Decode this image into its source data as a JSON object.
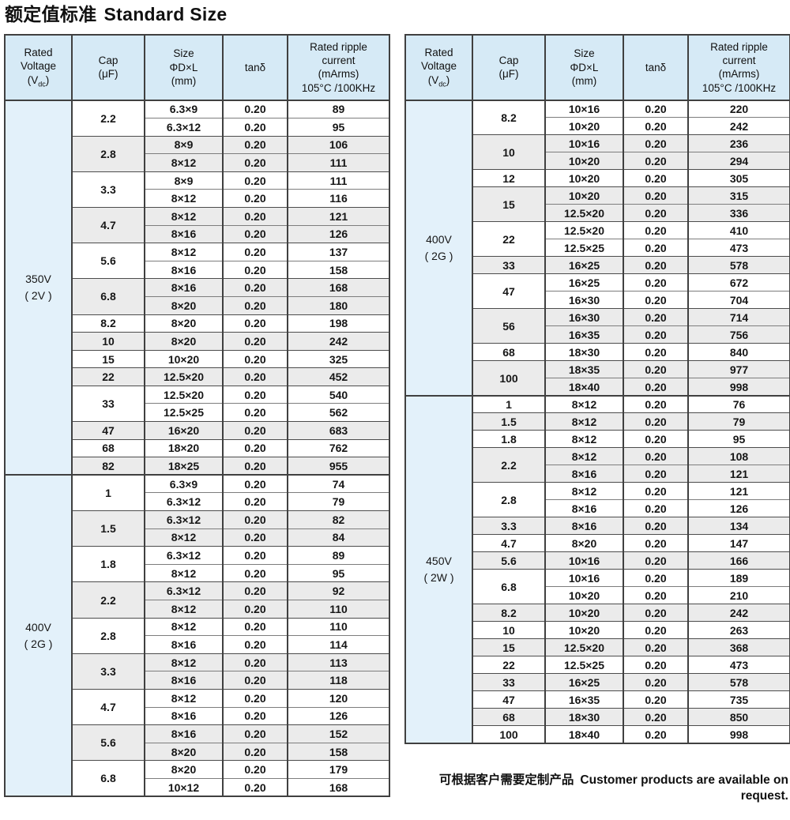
{
  "title": {
    "zh": "额定值标准",
    "en": "Standard Size"
  },
  "footnote": {
    "zh": "可根据客户需要定制产品",
    "en": "Customer products are available on request."
  },
  "colors": {
    "header_bg": "#d6eaf6",
    "voltage_bg": "#e3f1fa",
    "row_alt_bg": "#ebebeb",
    "border_dark": "#404040",
    "border_light": "#7d7d7d"
  },
  "header_columns": [
    {
      "name": "rated-voltage",
      "lines": [
        "Rated",
        "Voltage"
      ],
      "subscript": {
        "pre": "(V",
        "sub": "dc",
        "post": ")"
      }
    },
    {
      "name": "cap",
      "lines": [
        "Cap",
        "(μF)"
      ]
    },
    {
      "name": "size",
      "lines": [
        "Size",
        "ΦD×L",
        "(mm)"
      ]
    },
    {
      "name": "tan-delta",
      "lines": [
        "tanδ"
      ]
    },
    {
      "name": "ripple-current",
      "lines": [
        "Rated ripple",
        "current",
        "(mArms)",
        "105°C /100KHz"
      ]
    }
  ],
  "tables": [
    {
      "id": "left",
      "groups": [
        {
          "voltage": "350V",
          "code": "( 2V )",
          "caps": [
            {
              "cap": "2.2",
              "rows": [
                [
                  "6.3×9",
                  "0.20",
                  "89"
                ],
                [
                  "6.3×12",
                  "0.20",
                  "95"
                ]
              ]
            },
            {
              "cap": "2.8",
              "rows": [
                [
                  "8×9",
                  "0.20",
                  "106"
                ],
                [
                  "8×12",
                  "0.20",
                  "111"
                ]
              ]
            },
            {
              "cap": "3.3",
              "rows": [
                [
                  "8×9",
                  "0.20",
                  "111"
                ],
                [
                  "8×12",
                  "0.20",
                  "116"
                ]
              ]
            },
            {
              "cap": "4.7",
              "rows": [
                [
                  "8×12",
                  "0.20",
                  "121"
                ],
                [
                  "8×16",
                  "0.20",
                  "126"
                ]
              ]
            },
            {
              "cap": "5.6",
              "rows": [
                [
                  "8×12",
                  "0.20",
                  "137"
                ],
                [
                  "8×16",
                  "0.20",
                  "158"
                ]
              ]
            },
            {
              "cap": "6.8",
              "rows": [
                [
                  "8×16",
                  "0.20",
                  "168"
                ],
                [
                  "8×20",
                  "0.20",
                  "180"
                ]
              ]
            },
            {
              "cap": "8.2",
              "rows": [
                [
                  "8×20",
                  "0.20",
                  "198"
                ]
              ]
            },
            {
              "cap": "10",
              "rows": [
                [
                  "8×20",
                  "0.20",
                  "242"
                ]
              ]
            },
            {
              "cap": "15",
              "rows": [
                [
                  "10×20",
                  "0.20",
                  "325"
                ]
              ]
            },
            {
              "cap": "22",
              "rows": [
                [
                  "12.5×20",
                  "0.20",
                  "452"
                ]
              ]
            },
            {
              "cap": "33",
              "rows": [
                [
                  "12.5×20",
                  "0.20",
                  "540"
                ],
                [
                  "12.5×25",
                  "0.20",
                  "562"
                ]
              ]
            },
            {
              "cap": "47",
              "rows": [
                [
                  "16×20",
                  "0.20",
                  "683"
                ]
              ]
            },
            {
              "cap": "68",
              "rows": [
                [
                  "18×20",
                  "0.20",
                  "762"
                ]
              ]
            },
            {
              "cap": "82",
              "rows": [
                [
                  "18×25",
                  "0.20",
                  "955"
                ]
              ]
            }
          ]
        },
        {
          "voltage": "400V",
          "code": "( 2G )",
          "caps": [
            {
              "cap": "1",
              "rows": [
                [
                  "6.3×9",
                  "0.20",
                  "74"
                ],
                [
                  "6.3×12",
                  "0.20",
                  "79"
                ]
              ]
            },
            {
              "cap": "1.5",
              "rows": [
                [
                  "6.3×12",
                  "0.20",
                  "82"
                ],
                [
                  "8×12",
                  "0.20",
                  "84"
                ]
              ]
            },
            {
              "cap": "1.8",
              "rows": [
                [
                  "6.3×12",
                  "0.20",
                  "89"
                ],
                [
                  "8×12",
                  "0.20",
                  "95"
                ]
              ]
            },
            {
              "cap": "2.2",
              "rows": [
                [
                  "6.3×12",
                  "0.20",
                  "92"
                ],
                [
                  "8×12",
                  "0.20",
                  "110"
                ]
              ]
            },
            {
              "cap": "2.8",
              "rows": [
                [
                  "8×12",
                  "0.20",
                  "110"
                ],
                [
                  "8×16",
                  "0.20",
                  "114"
                ]
              ]
            },
            {
              "cap": "3.3",
              "rows": [
                [
                  "8×12",
                  "0.20",
                  "113"
                ],
                [
                  "8×16",
                  "0.20",
                  "118"
                ]
              ]
            },
            {
              "cap": "4.7",
              "rows": [
                [
                  "8×12",
                  "0.20",
                  "120"
                ],
                [
                  "8×16",
                  "0.20",
                  "126"
                ]
              ]
            },
            {
              "cap": "5.6",
              "rows": [
                [
                  "8×16",
                  "0.20",
                  "152"
                ],
                [
                  "8×20",
                  "0.20",
                  "158"
                ]
              ]
            },
            {
              "cap": "6.8",
              "rows": [
                [
                  "8×20",
                  "0.20",
                  "179"
                ],
                [
                  "10×12",
                  "0.20",
                  "168"
                ]
              ]
            }
          ]
        }
      ]
    },
    {
      "id": "right",
      "groups": [
        {
          "voltage": "400V",
          "code": "( 2G )",
          "caps": [
            {
              "cap": "8.2",
              "rows": [
                [
                  "10×16",
                  "0.20",
                  "220"
                ],
                [
                  "10×20",
                  "0.20",
                  "242"
                ]
              ]
            },
            {
              "cap": "10",
              "rows": [
                [
                  "10×16",
                  "0.20",
                  "236"
                ],
                [
                  "10×20",
                  "0.20",
                  "294"
                ]
              ]
            },
            {
              "cap": "12",
              "rows": [
                [
                  "10×20",
                  "0.20",
                  "305"
                ]
              ]
            },
            {
              "cap": "15",
              "rows": [
                [
                  "10×20",
                  "0.20",
                  "315"
                ],
                [
                  "12.5×20",
                  "0.20",
                  "336"
                ]
              ]
            },
            {
              "cap": "22",
              "rows": [
                [
                  "12.5×20",
                  "0.20",
                  "410"
                ],
                [
                  "12.5×25",
                  "0.20",
                  "473"
                ]
              ]
            },
            {
              "cap": "33",
              "rows": [
                [
                  "16×25",
                  "0.20",
                  "578"
                ]
              ]
            },
            {
              "cap": "47",
              "rows": [
                [
                  "16×25",
                  "0.20",
                  "672"
                ],
                [
                  "16×30",
                  "0.20",
                  "704"
                ]
              ]
            },
            {
              "cap": "56",
              "rows": [
                [
                  "16×30",
                  "0.20",
                  "714"
                ],
                [
                  "16×35",
                  "0.20",
                  "756"
                ]
              ]
            },
            {
              "cap": "68",
              "rows": [
                [
                  "18×30",
                  "0.20",
                  "840"
                ]
              ]
            },
            {
              "cap": "100",
              "rows": [
                [
                  "18×35",
                  "0.20",
                  "977"
                ],
                [
                  "18×40",
                  "0.20",
                  "998"
                ]
              ]
            }
          ]
        },
        {
          "voltage": "450V",
          "code": "( 2W )",
          "caps": [
            {
              "cap": "1",
              "rows": [
                [
                  "8×12",
                  "0.20",
                  "76"
                ]
              ]
            },
            {
              "cap": "1.5",
              "rows": [
                [
                  "8×12",
                  "0.20",
                  "79"
                ]
              ]
            },
            {
              "cap": "1.8",
              "rows": [
                [
                  "8×12",
                  "0.20",
                  "95"
                ]
              ]
            },
            {
              "cap": "2.2",
              "rows": [
                [
                  "8×12",
                  "0.20",
                  "108"
                ],
                [
                  "8×16",
                  "0.20",
                  "121"
                ]
              ]
            },
            {
              "cap": "2.8",
              "rows": [
                [
                  "8×12",
                  "0.20",
                  "121"
                ],
                [
                  "8×16",
                  "0.20",
                  "126"
                ]
              ]
            },
            {
              "cap": "3.3",
              "rows": [
                [
                  "8×16",
                  "0.20",
                  "134"
                ]
              ]
            },
            {
              "cap": "4.7",
              "rows": [
                [
                  "8×20",
                  "0.20",
                  "147"
                ]
              ]
            },
            {
              "cap": "5.6",
              "rows": [
                [
                  "10×16",
                  "0.20",
                  "166"
                ]
              ]
            },
            {
              "cap": "6.8",
              "rows": [
                [
                  "10×16",
                  "0.20",
                  "189"
                ],
                [
                  "10×20",
                  "0.20",
                  "210"
                ]
              ]
            },
            {
              "cap": "8.2",
              "rows": [
                [
                  "10×20",
                  "0.20",
                  "242"
                ]
              ]
            },
            {
              "cap": "10",
              "rows": [
                [
                  "10×20",
                  "0.20",
                  "263"
                ]
              ]
            },
            {
              "cap": "15",
              "rows": [
                [
                  "12.5×20",
                  "0.20",
                  "368"
                ]
              ]
            },
            {
              "cap": "22",
              "rows": [
                [
                  "12.5×25",
                  "0.20",
                  "473"
                ]
              ]
            },
            {
              "cap": "33",
              "rows": [
                [
                  "16×25",
                  "0.20",
                  "578"
                ]
              ]
            },
            {
              "cap": "47",
              "rows": [
                [
                  "16×35",
                  "0.20",
                  "735"
                ]
              ]
            },
            {
              "cap": "68",
              "rows": [
                [
                  "18×30",
                  "0.20",
                  "850"
                ]
              ]
            },
            {
              "cap": "100",
              "rows": [
                [
                  "18×40",
                  "0.20",
                  "998"
                ]
              ]
            }
          ]
        }
      ]
    }
  ]
}
